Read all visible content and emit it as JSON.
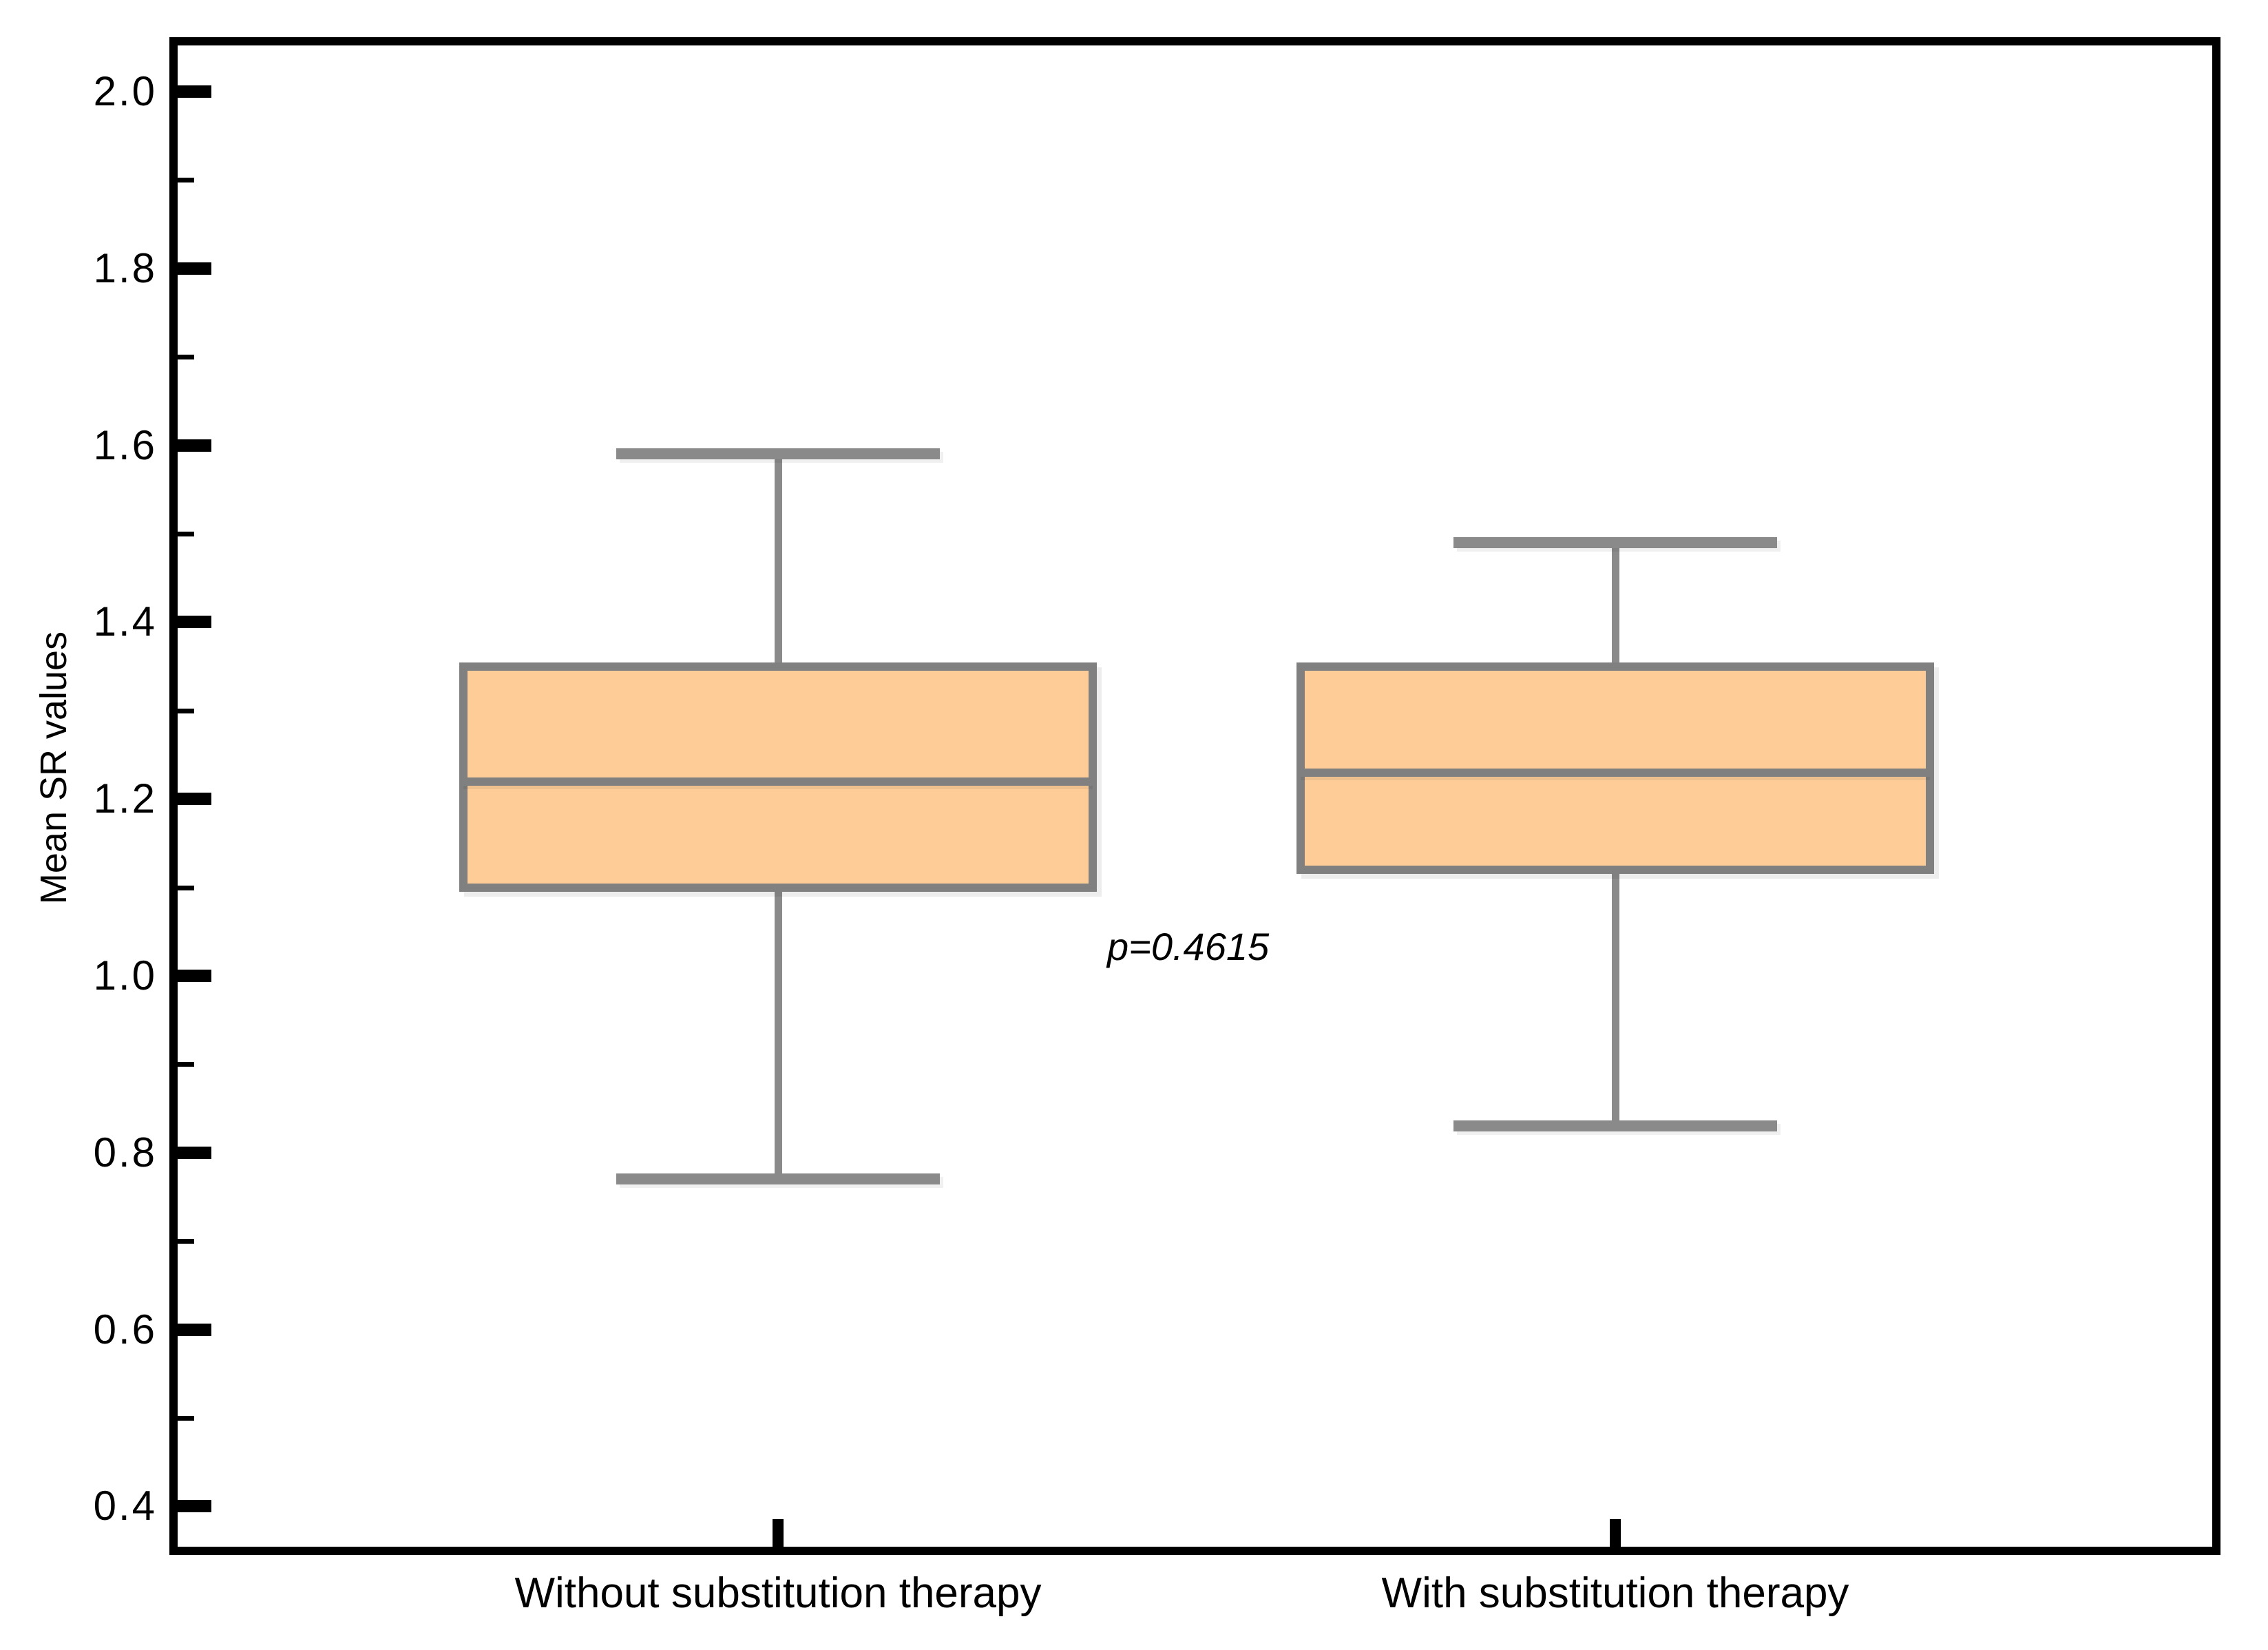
{
  "figure": {
    "background": "#FFFFFF"
  },
  "chart_data": {
    "type": "box",
    "title": "",
    "ylabel": "Mean SR values",
    "xlabel": "",
    "categories": [
      "Without substitution therapy",
      "With substitution therapy"
    ],
    "series": [
      {
        "name": "Without substitution therapy",
        "whisker_low": 0.77,
        "q1": 1.1,
        "median": 1.22,
        "q3": 1.35,
        "whisker_high": 1.59
      },
      {
        "name": "With substitution therapy",
        "whisker_low": 0.83,
        "q1": 1.12,
        "median": 1.23,
        "q3": 1.35,
        "whisker_high": 1.49
      }
    ],
    "annotation": {
      "text": "p=0.4615"
    },
    "y_axis": {
      "major_ticks": [
        {
          "value": 2.0,
          "label": "2.0"
        },
        {
          "value": 1.8,
          "label": "1.8"
        },
        {
          "value": 1.6,
          "label": "1.6"
        },
        {
          "value": 1.4,
          "label": "1.4"
        },
        {
          "value": 1.2,
          "label": "1.2"
        },
        {
          "value": 1.0,
          "label": "1.0"
        },
        {
          "value": 0.8,
          "label": "0.8"
        },
        {
          "value": 0.6,
          "label": "0.6"
        },
        {
          "value": 0.4,
          "label": "0.4"
        }
      ],
      "minor_ticks": [
        1.9,
        1.7,
        1.5,
        1.3,
        1.1,
        0.9,
        0.7,
        0.5
      ],
      "range_shown": [
        0.35,
        2.06
      ]
    },
    "grid": "off",
    "legend": "none",
    "colors": {
      "box_fill": "#FDCC97",
      "box_border": "#808080",
      "whisker": "#8A8A8A",
      "median": "#808080",
      "axis": "#000000",
      "text": "#000000"
    }
  }
}
